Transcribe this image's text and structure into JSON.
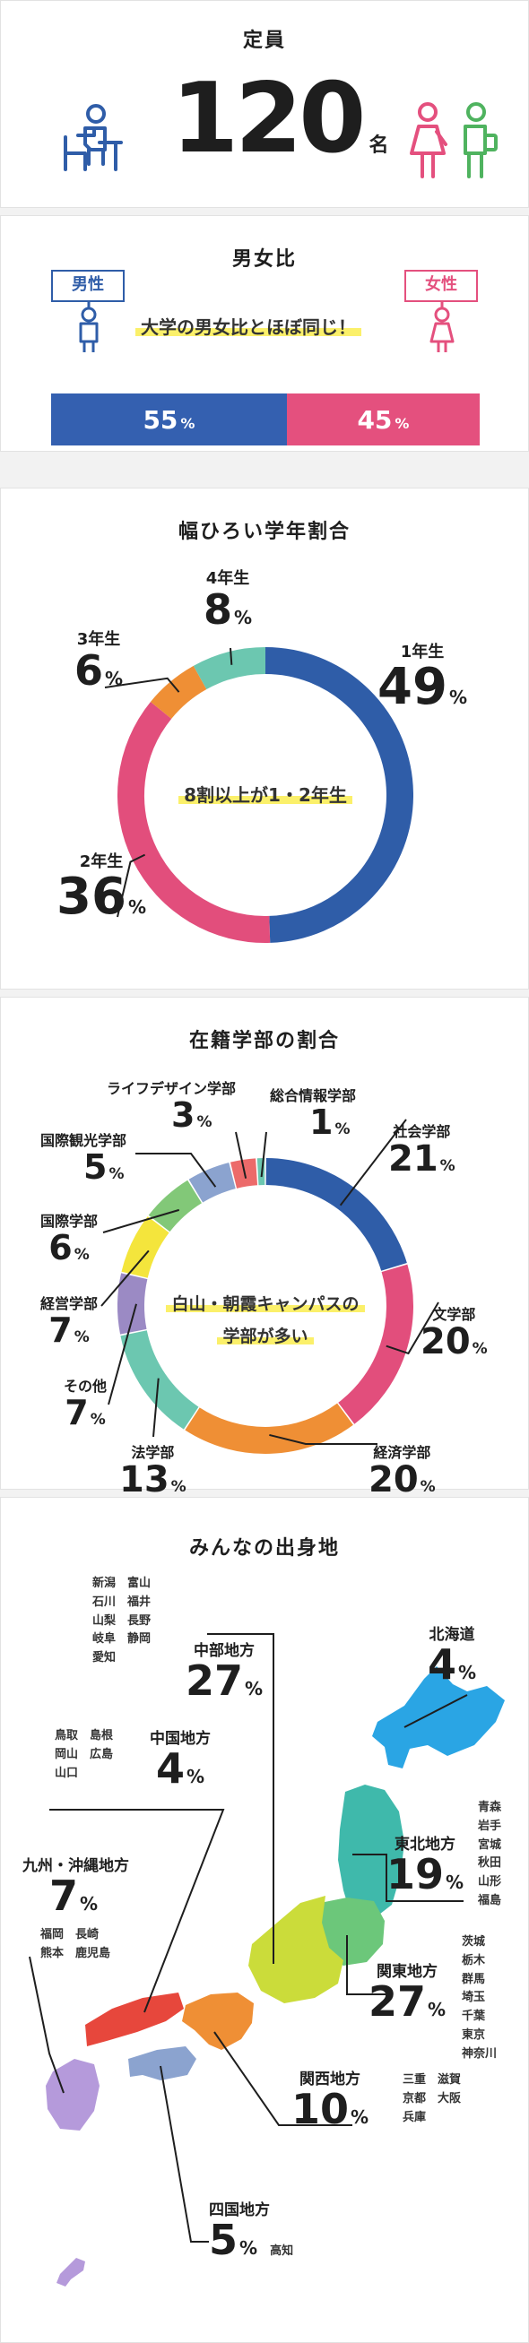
{
  "capacity": {
    "title": "定員",
    "value": "120",
    "unit": "名"
  },
  "gender": {
    "title": "男女比",
    "male_label": "男性",
    "female_label": "女性",
    "note": "大学の男女比とほぼ同じ！",
    "male_value": "55",
    "female_value": "45",
    "unit": "%",
    "colors": {
      "male": "#3460b0",
      "female": "#e4507e"
    }
  },
  "grade": {
    "title": "幅ひろい学年割合",
    "center_note": "8割以上が1・2年生",
    "unit": "%"
  },
  "faculty": {
    "title": "在籍学部の割合",
    "center_note_line1": "白山・朝霞キャンパスの",
    "center_note_line2": "学部が多い",
    "unit": "%"
  },
  "origin": {
    "title": "みんなの出身地",
    "unit": "%",
    "regions": [
      {
        "name": "北海道",
        "value": "4",
        "prefs": ""
      },
      {
        "name": "東北地方",
        "value": "19",
        "prefs": "青森\n岩手\n宮城\n秋田\n山形\n福島"
      },
      {
        "name": "関東地方",
        "value": "27",
        "prefs": "茨城\n栃木\n群馬\n埼玉\n千葉\n東京\n神奈川"
      },
      {
        "name": "中部地方",
        "value": "27",
        "prefs": "新潟　富山\n石川　福井\n山梨　長野\n岐阜　静岡\n愛知"
      },
      {
        "name": "関西地方",
        "value": "10",
        "prefs": "三重　滋賀\n京都　大阪\n兵庫"
      },
      {
        "name": "中国地方",
        "value": "4",
        "prefs": "鳥取　島根\n岡山　広島\n山口"
      },
      {
        "name": "四国地方",
        "value": "5",
        "prefs": "高知"
      },
      {
        "name": "九州・沖縄地方",
        "value": "7",
        "prefs": "福岡　長崎\n熊本　鹿児島"
      }
    ]
  },
  "chart_data": [
    {
      "type": "bar",
      "title": "男女比",
      "categories": [
        "男性",
        "女性"
      ],
      "values": [
        55,
        45
      ]
    },
    {
      "type": "pie",
      "title": "幅ひろい学年割合",
      "categories": [
        "1年生",
        "2年生",
        "3年生",
        "4年生"
      ],
      "values": [
        49,
        36,
        6,
        8
      ],
      "colors": [
        "#2f5da8",
        "#e24e7c",
        "#ef8f35",
        "#6cc7b0"
      ]
    },
    {
      "type": "pie",
      "title": "在籍学部の割合",
      "categories": [
        "社会学部",
        "文学部",
        "経済学部",
        "法学部",
        "その他",
        "経営学部",
        "国際学部",
        "国際観光学部",
        "ライフデザイン学部",
        "総合情報学部"
      ],
      "values": [
        21,
        20,
        20,
        13,
        7,
        7,
        6,
        5,
        3,
        1
      ],
      "colors": [
        "#2f5da8",
        "#e24e7c",
        "#ef8f35",
        "#6cc7b0",
        "#9b8ac4",
        "#f4e53c",
        "#82c878",
        "#8ba3cf",
        "#ec6a6a",
        "#6cc7b0"
      ]
    },
    {
      "type": "table",
      "title": "みんなの出身地",
      "categories": [
        "北海道",
        "東北地方",
        "関東地方",
        "中部地方",
        "関西地方",
        "中国地方",
        "四国地方",
        "九州・沖縄地方"
      ],
      "values": [
        4,
        19,
        27,
        27,
        10,
        4,
        5,
        7
      ]
    }
  ]
}
